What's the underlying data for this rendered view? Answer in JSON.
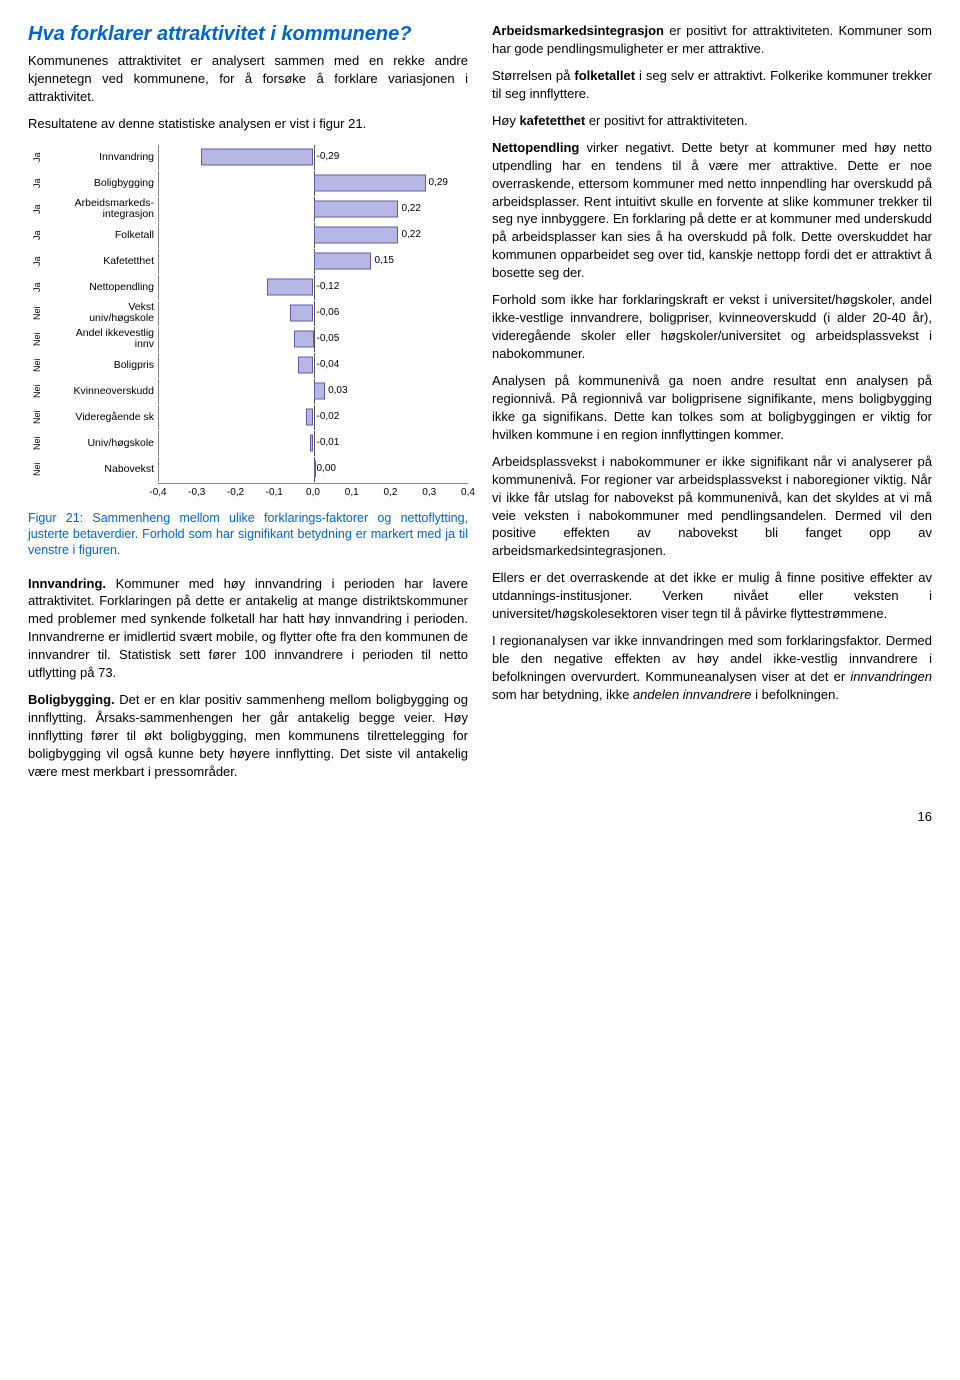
{
  "title": "Hva forklarer attraktivitet i kommunene?",
  "l_p1": "Kommunenes attraktivitet er analysert sammen med en rekke andre kjennetegn ved kommunene, for å forsøke å forklare variasjonen i attraktivitet.",
  "l_p2": "Resultatene av denne statistiske analysen er vist i figur 21.",
  "chart": {
    "xmin": -0.4,
    "xmax": 0.4,
    "ticks": [
      "-0,4",
      "-0,3",
      "-0,2",
      "-0,1",
      "0,0",
      "0,1",
      "0,2",
      "0,3",
      "0,4"
    ],
    "bar_fill": "#b6b7e2",
    "bar_border": "#5b5fa8",
    "rows": [
      {
        "sig": "Ja",
        "label": "Innvandring",
        "value": -0.29,
        "txt": "-0,29"
      },
      {
        "sig": "Ja",
        "label": "Boligbygging",
        "value": 0.29,
        "txt": "0,29"
      },
      {
        "sig": "Ja",
        "label": "Arbeidsmarkeds-\nintegrasjon",
        "value": 0.22,
        "txt": "0,22"
      },
      {
        "sig": "Ja",
        "label": "Folketall",
        "value": 0.22,
        "txt": "0,22"
      },
      {
        "sig": "Ja",
        "label": "Kafetetthet",
        "value": 0.15,
        "txt": "0,15"
      },
      {
        "sig": "Ja",
        "label": "Nettopendling",
        "value": -0.12,
        "txt": "-0,12"
      },
      {
        "sig": "Nei",
        "label": "Vekst\nuniv/høgskole",
        "value": -0.06,
        "txt": "-0,06"
      },
      {
        "sig": "Nei",
        "label": "Andel ikkevestlig\ninnv",
        "value": -0.05,
        "txt": "-0,05"
      },
      {
        "sig": "Nei",
        "label": "Boligpris",
        "value": -0.04,
        "txt": "-0,04"
      },
      {
        "sig": "Nei",
        "label": "Kvinneoverskudd",
        "value": 0.03,
        "txt": "0,03"
      },
      {
        "sig": "Nei",
        "label": "Videregående sk",
        "value": -0.02,
        "txt": "-0,02"
      },
      {
        "sig": "Nei",
        "label": "Univ/høgskole",
        "value": -0.01,
        "txt": "-0,01"
      },
      {
        "sig": "Nei",
        "label": "Nabovekst",
        "value": 0.0,
        "txt": "0,00"
      }
    ]
  },
  "caption": "Figur 21: Sammenheng mellom ulike forklarings-faktorer og nettoflytting, justerte betaverdier. Forhold som har signifikant betydning er markert med ja til venstre i figuren.",
  "l_p3a": "Innvandring.",
  "l_p3b": " Kommuner med høy innvandring i perioden har lavere attraktivitet. Forklaringen på dette er antakelig at mange distriktskommuner med problemer med synkende folketall har hatt høy innvandring i perioden. Innvandrerne er imidlertid svært mobile, og flytter ofte fra den kommunen de innvandrer til. Statistisk sett fører 100 innvandrere i perioden til netto utflytting på 73.",
  "l_p4a": "Boligbygging.",
  "l_p4b": " Det er en klar positiv sammenheng mellom boligbygging og innflytting. Årsaks-sammenhengen her går antakelig begge veier. Høy innflytting fører til økt boligbygging, men kommunens tilrettelegging for boligbygging vil også kunne bety høyere innflytting. Det siste vil antakelig være mest merkbart i pressområder.",
  "r_p1a": "Arbeidsmarkedsintegrasjon",
  "r_p1b": " er positivt for attraktiviteten. Kommuner som har gode pendlingsmuligheter er mer attraktive.",
  "r_p2a": "Størrelsen på ",
  "r_p2b": "folketallet",
  "r_p2c": " i seg selv er attraktivt. Folkerike kommuner trekker til seg innflyttere.",
  "r_p3a": "Høy ",
  "r_p3b": "kafetetthet",
  "r_p3c": " er positivt for attraktiviteten.",
  "r_p4a": "Nettopendling",
  "r_p4b": " virker negativt. Dette betyr at kommuner med høy netto utpendling har en tendens til å være mer attraktive. Dette er noe overraskende, ettersom kommuner med netto innpendling har overskudd på arbeidsplasser. Rent intuitivt skulle en forvente at slike kommuner trekker til seg nye innbyggere. En forklaring på dette er at kommuner med underskudd på arbeidsplasser kan sies å ha overskudd på folk. Dette overskuddet har kommunen opparbeidet seg over tid, kanskje nettopp fordi det er attraktivt å bosette seg der.",
  "r_p5": "Forhold som ikke har forklaringskraft er vekst i universitet/høgskoler, andel ikke-vestlige innvandrere, boligpriser, kvinneoverskudd (i alder 20-40 år), videregående skoler eller høgskoler/universitet og arbeidsplassvekst i nabokommuner.",
  "r_p6": "Analysen på kommunenivå ga noen andre resultat enn analysen på regionnivå. På regionnivå var boligprisene signifikante, mens boligbygging ikke ga signifikans. Dette kan tolkes som at boligbyggingen er viktig for hvilken kommune i en region innflyttingen kommer.",
  "r_p7": "Arbeidsplassvekst i nabokommuner er ikke signifikant når vi analyserer på kommunenivå. For regioner var arbeidsplassvekst i naboregioner viktig. Når vi ikke får utslag for nabovekst på kommunenivå, kan det skyldes at vi må veie veksten i nabokommuner med pendlingsandelen. Dermed vil den positive effekten av nabovekst bli fanget opp av arbeidsmarkedsintegrasjonen.",
  "r_p8": "Ellers er det overraskende at det ikke er mulig å finne positive effekter av utdannings-institusjoner. Verken nivået eller veksten i universitet/høgskolesektoren viser tegn til å påvirke flyttestrømmene.",
  "r_p9a": "I regionanalysen var ikke innvandringen med som forklaringsfaktor. Dermed ble den negative effekten av høy andel ikke-vestlig innvandrere i befolkningen overvurdert. Kommuneanalysen viser at det er ",
  "r_p9b": "innvandringen",
  "r_p9c": " som har betydning, ikke ",
  "r_p9d": "andelen innvandrere",
  "r_p9e": " i befolkningen.",
  "pagenum": "16"
}
